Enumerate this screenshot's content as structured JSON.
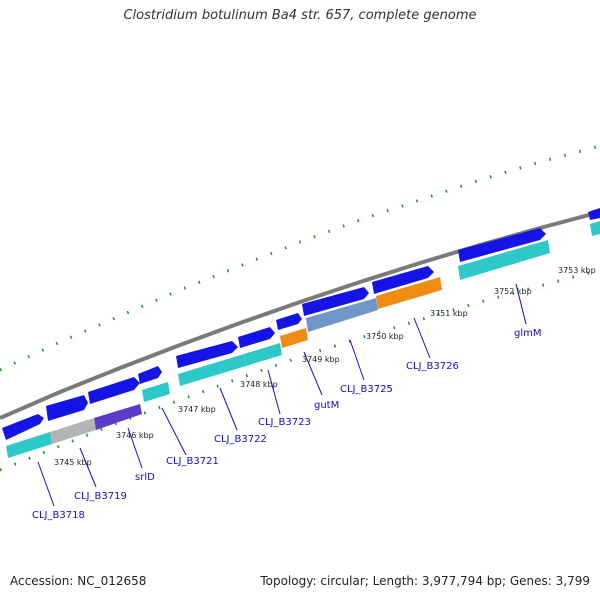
{
  "title": "Clostridium botulinum Ba4 str. 657, complete genome",
  "footer": {
    "accession": "Accession: NC_012658",
    "stats": "Topology: circular; Length: 3,977,794 bp; Genes: 3,799"
  },
  "colors": {
    "backbone": "#888888",
    "forward_gene": "#1414e6",
    "cds_cyan": "#2ec8c8",
    "cds_gray": "#b4b4b4",
    "cds_purple": "#5a3cc8",
    "cds_orange": "#f08c14",
    "cds_steel": "#6e96c8",
    "tick_dots": "#2a8a2a",
    "label_line": "#1010c0"
  },
  "scale_labels": [
    "3745 kbp",
    "3746 kbp",
    "3747 kbp",
    "3748 kbp",
    "3749 kbp",
    "3750 kbp",
    "3751 kbp",
    "3752 kbp",
    "3753 kbp"
  ],
  "gene_labels": [
    "CLJ_B3718",
    "CLJ_B3719",
    "srlD",
    "CLJ_B3721",
    "CLJ_B3722",
    "CLJ_B3723",
    "gutM",
    "CLJ_B3725",
    "CLJ_B3726",
    "glmM"
  ]
}
